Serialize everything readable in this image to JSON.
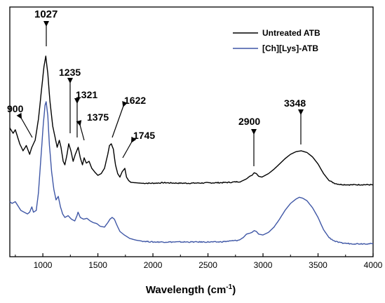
{
  "chart_data": {
    "type": "line",
    "title": "",
    "xlabel": "Wavelength (cm",
    "xlabel_sup": "-1",
    "xlabel_close": ")",
    "ylabel": "",
    "xlim": [
      700,
      4000
    ],
    "y_axis_shown": false,
    "grid": false,
    "legend_placement": "top-right",
    "x_ticks": [
      1000,
      1500,
      2000,
      2500,
      3000,
      3500,
      4000
    ],
    "series": [
      {
        "name": "Untreated ATB",
        "color": "#000000",
        "points": [
          [
            700,
            0.55
          ],
          [
            730,
            0.52
          ],
          [
            750,
            0.54
          ],
          [
            790,
            0.46
          ],
          [
            820,
            0.42
          ],
          [
            850,
            0.45
          ],
          [
            880,
            0.4
          ],
          [
            900,
            0.44
          ],
          [
            930,
            0.48
          ],
          [
            960,
            0.6
          ],
          [
            990,
            0.78
          ],
          [
            1010,
            0.9
          ],
          [
            1027,
            0.96
          ],
          [
            1045,
            0.86
          ],
          [
            1065,
            0.7
          ],
          [
            1090,
            0.56
          ],
          [
            1110,
            0.5
          ],
          [
            1130,
            0.44
          ],
          [
            1150,
            0.48
          ],
          [
            1165,
            0.44
          ],
          [
            1185,
            0.36
          ],
          [
            1200,
            0.34
          ],
          [
            1220,
            0.4
          ],
          [
            1235,
            0.46
          ],
          [
            1255,
            0.42
          ],
          [
            1275,
            0.36
          ],
          [
            1295,
            0.4
          ],
          [
            1321,
            0.44
          ],
          [
            1340,
            0.38
          ],
          [
            1360,
            0.34
          ],
          [
            1375,
            0.38
          ],
          [
            1395,
            0.35
          ],
          [
            1420,
            0.36
          ],
          [
            1445,
            0.32
          ],
          [
            1470,
            0.3
          ],
          [
            1500,
            0.28
          ],
          [
            1530,
            0.29
          ],
          [
            1560,
            0.32
          ],
          [
            1590,
            0.4
          ],
          [
            1605,
            0.45
          ],
          [
            1622,
            0.46
          ],
          [
            1640,
            0.43
          ],
          [
            1660,
            0.34
          ],
          [
            1680,
            0.29
          ],
          [
            1700,
            0.27
          ],
          [
            1720,
            0.3
          ],
          [
            1745,
            0.32
          ],
          [
            1760,
            0.27
          ],
          [
            1780,
            0.25
          ],
          [
            1800,
            0.24
          ],
          [
            1900,
            0.235
          ],
          [
            2000,
            0.235
          ],
          [
            2100,
            0.238
          ],
          [
            2200,
            0.236
          ],
          [
            2300,
            0.235
          ],
          [
            2400,
            0.236
          ],
          [
            2500,
            0.237
          ],
          [
            2600,
            0.238
          ],
          [
            2700,
            0.24
          ],
          [
            2800,
            0.245
          ],
          [
            2850,
            0.26
          ],
          [
            2880,
            0.275
          ],
          [
            2900,
            0.28
          ],
          [
            2920,
            0.295
          ],
          [
            2940,
            0.29
          ],
          [
            2960,
            0.275
          ],
          [
            2990,
            0.27
          ],
          [
            3050,
            0.29
          ],
          [
            3100,
            0.315
          ],
          [
            3150,
            0.345
          ],
          [
            3200,
            0.375
          ],
          [
            3250,
            0.4
          ],
          [
            3300,
            0.415
          ],
          [
            3348,
            0.42
          ],
          [
            3400,
            0.41
          ],
          [
            3450,
            0.385
          ],
          [
            3500,
            0.345
          ],
          [
            3550,
            0.29
          ],
          [
            3600,
            0.25
          ],
          [
            3650,
            0.235
          ],
          [
            3700,
            0.228
          ],
          [
            3800,
            0.226
          ],
          [
            3900,
            0.227
          ],
          [
            4000,
            0.226
          ]
        ]
      },
      {
        "name": "[Ch][Lys]-ATB",
        "color": "#3F57A6",
        "points": [
          [
            700,
            0.13
          ],
          [
            720,
            0.12
          ],
          [
            750,
            0.13
          ],
          [
            780,
            0.1
          ],
          [
            800,
            0.08
          ],
          [
            830,
            0.07
          ],
          [
            860,
            0.06
          ],
          [
            880,
            0.07
          ],
          [
            900,
            0.1
          ],
          [
            915,
            0.07
          ],
          [
            940,
            0.08
          ],
          [
            960,
            0.18
          ],
          [
            985,
            0.4
          ],
          [
            1005,
            0.58
          ],
          [
            1020,
            0.68
          ],
          [
            1030,
            0.7
          ],
          [
            1045,
            0.62
          ],
          [
            1060,
            0.45
          ],
          [
            1080,
            0.3
          ],
          [
            1100,
            0.2
          ],
          [
            1120,
            0.14
          ],
          [
            1140,
            0.16
          ],
          [
            1160,
            0.1
          ],
          [
            1180,
            0.06
          ],
          [
            1200,
            0.04
          ],
          [
            1230,
            0.05
          ],
          [
            1260,
            0.03
          ],
          [
            1290,
            0.02
          ],
          [
            1310,
            0.05
          ],
          [
            1320,
            0.07
          ],
          [
            1340,
            0.04
          ],
          [
            1370,
            0.03
          ],
          [
            1400,
            0.035
          ],
          [
            1430,
            0.02
          ],
          [
            1460,
            0.01
          ],
          [
            1490,
            0.005
          ],
          [
            1520,
            -0.01
          ],
          [
            1560,
            -0.015
          ],
          [
            1590,
            0.01
          ],
          [
            1610,
            0.03
          ],
          [
            1630,
            0.04
          ],
          [
            1650,
            0.03
          ],
          [
            1670,
            0.0
          ],
          [
            1700,
            -0.04
          ],
          [
            1740,
            -0.06
          ],
          [
            1790,
            -0.08
          ],
          [
            1850,
            -0.09
          ],
          [
            1900,
            -0.095
          ],
          [
            2000,
            -0.1
          ],
          [
            2100,
            -0.1
          ],
          [
            2200,
            -0.1
          ],
          [
            2300,
            -0.1
          ],
          [
            2400,
            -0.1
          ],
          [
            2500,
            -0.1
          ],
          [
            2600,
            -0.1
          ],
          [
            2700,
            -0.095
          ],
          [
            2780,
            -0.09
          ],
          [
            2820,
            -0.075
          ],
          [
            2850,
            -0.055
          ],
          [
            2880,
            -0.05
          ],
          [
            2900,
            -0.045
          ],
          [
            2920,
            -0.035
          ],
          [
            2940,
            -0.04
          ],
          [
            2960,
            -0.055
          ],
          [
            3000,
            -0.06
          ],
          [
            3050,
            -0.045
          ],
          [
            3100,
            -0.015
          ],
          [
            3150,
            0.03
          ],
          [
            3200,
            0.08
          ],
          [
            3250,
            0.12
          ],
          [
            3300,
            0.145
          ],
          [
            3330,
            0.155
          ],
          [
            3360,
            0.15
          ],
          [
            3400,
            0.135
          ],
          [
            3450,
            0.095
          ],
          [
            3500,
            0.04
          ],
          [
            3550,
            -0.03
          ],
          [
            3600,
            -0.075
          ],
          [
            3650,
            -0.095
          ],
          [
            3700,
            -0.105
          ],
          [
            3800,
            -0.11
          ],
          [
            3900,
            -0.11
          ],
          [
            4000,
            -0.11
          ]
        ]
      }
    ],
    "peak_labels": [
      "900",
      "1027",
      "1235",
      "1321",
      "1375",
      "1622",
      "1745",
      "2900",
      "3348"
    ]
  }
}
